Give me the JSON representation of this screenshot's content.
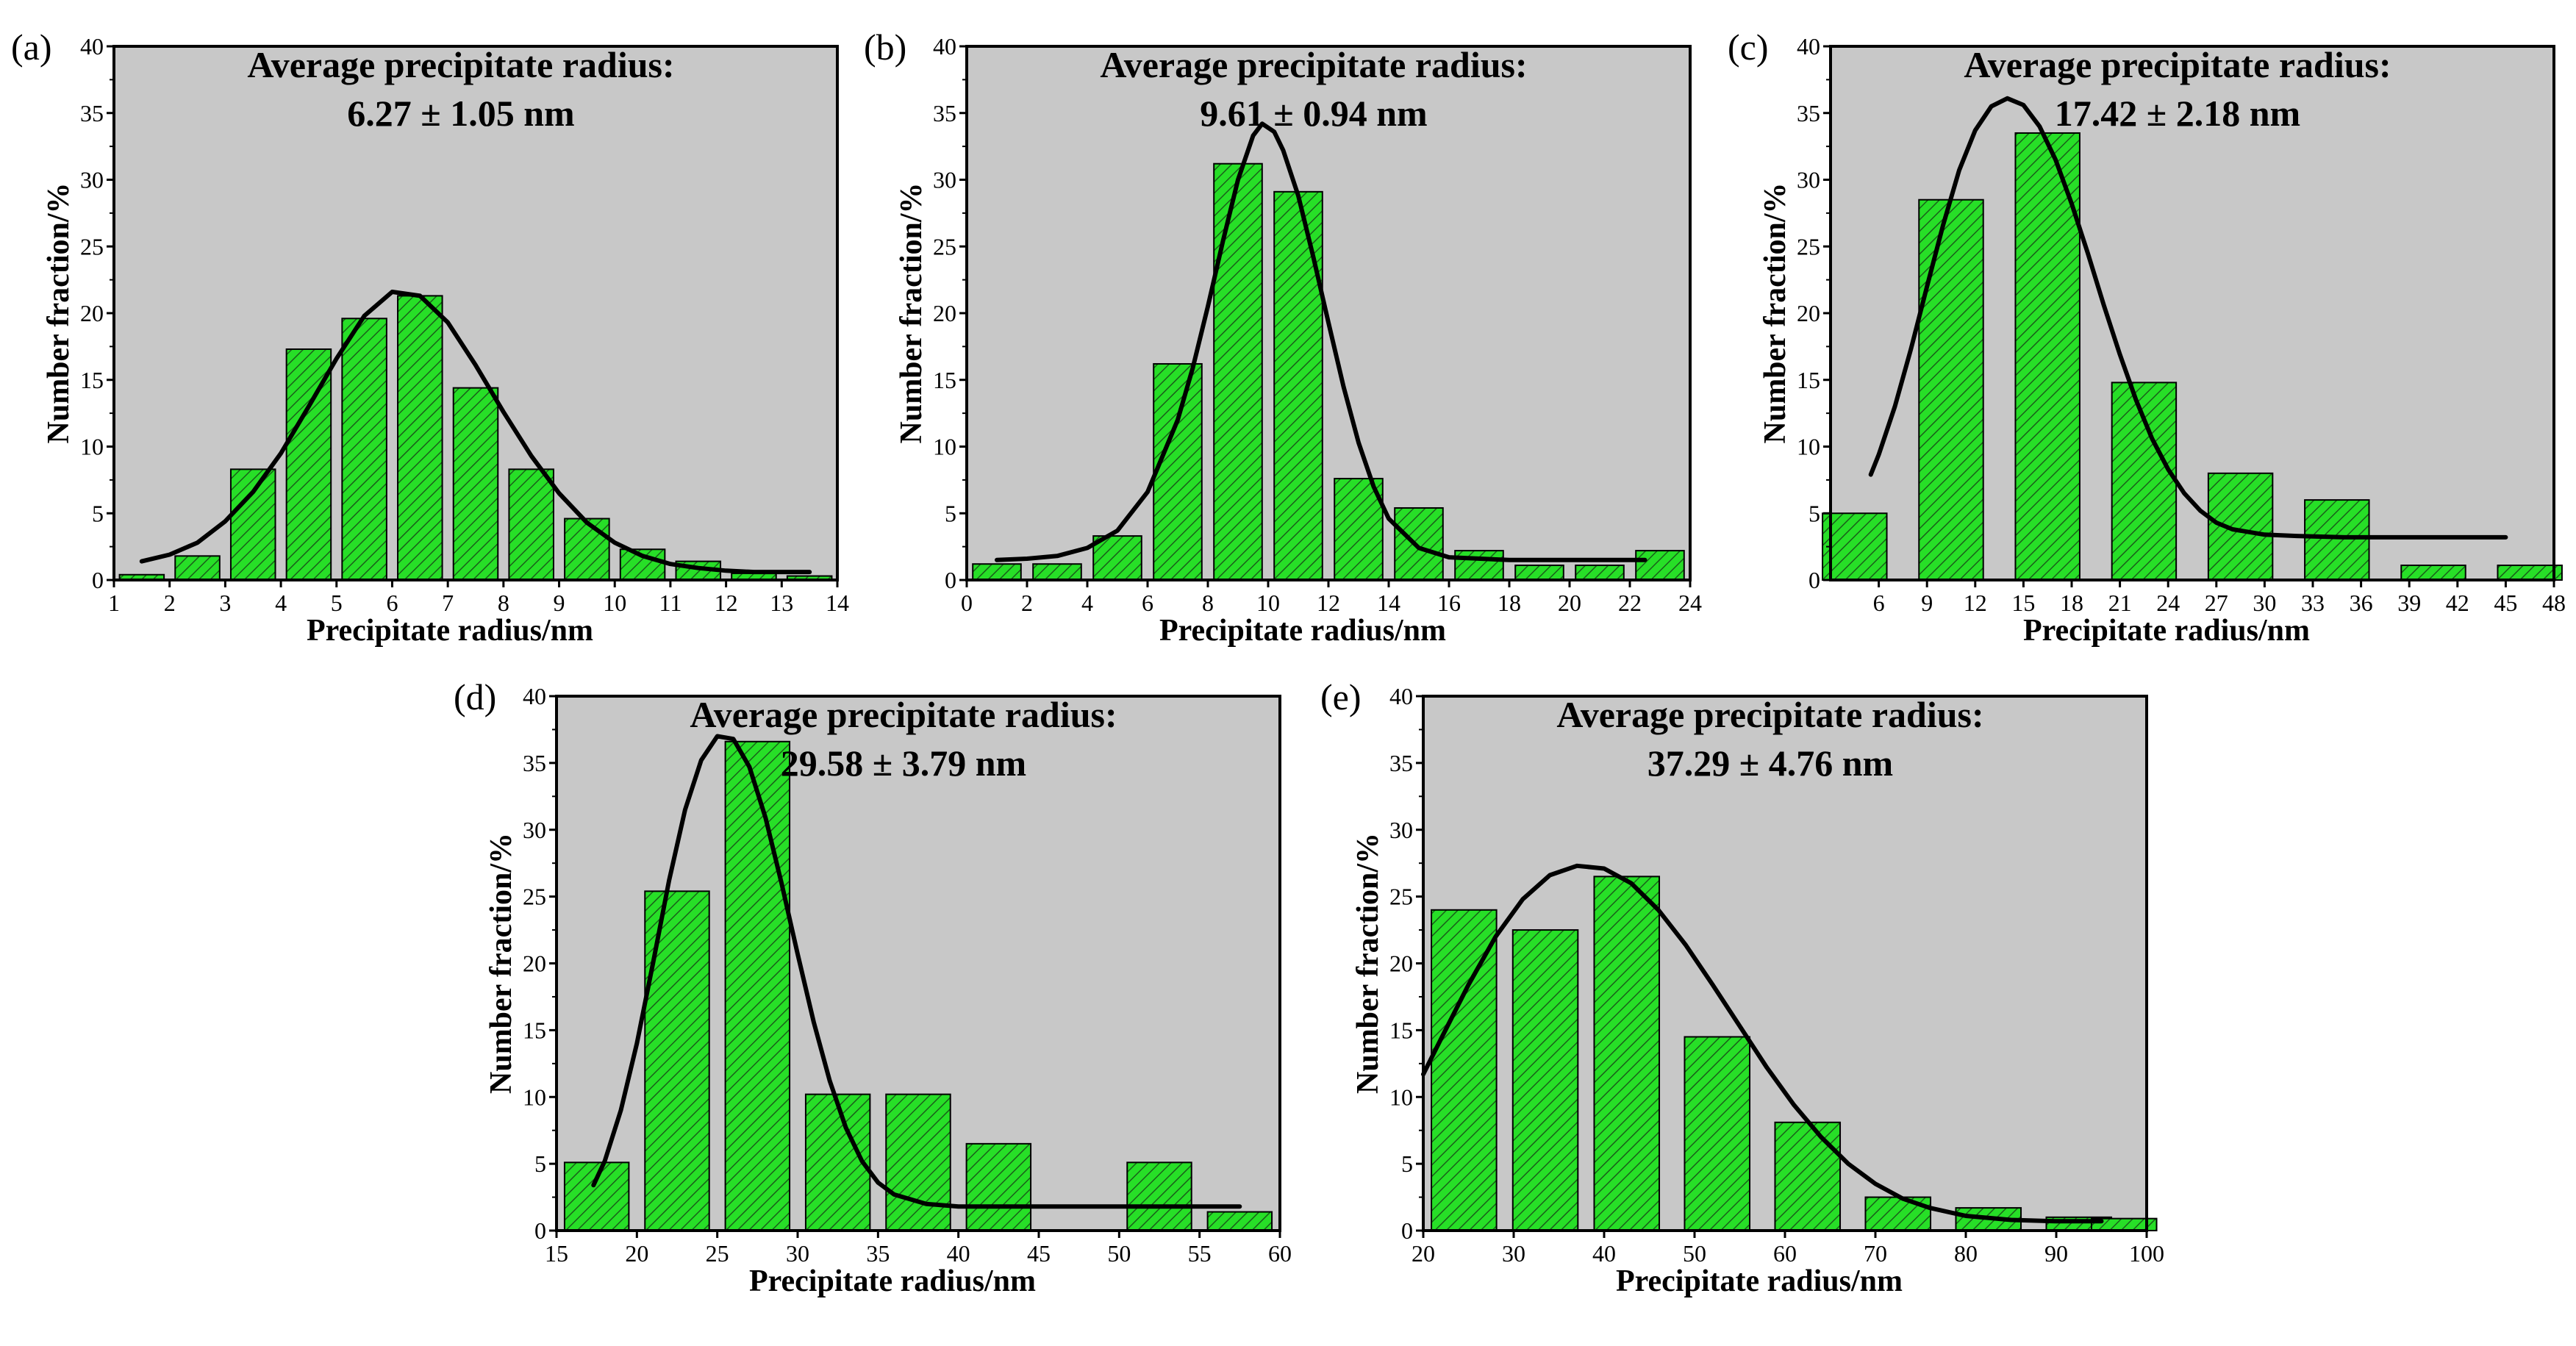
{
  "colors": {
    "plot_background": "#c8c8c8",
    "bar_fill": "#27df27",
    "bar_edge": "#000000",
    "curve": "#000000",
    "hatch": "#1a5f1a"
  },
  "chart_data": [
    {
      "panel": "(a)",
      "type": "bar",
      "annotation": [
        "Average precipitate radius:",
        "6.27 ± 1.05 nm"
      ],
      "xlabel": "Precipitate radius/nm",
      "ylabel": "Number fraction/%",
      "xlim": [
        1,
        14
      ],
      "ylim": [
        0,
        40
      ],
      "xticks": [
        1,
        2,
        3,
        4,
        5,
        6,
        7,
        8,
        9,
        10,
        11,
        12,
        13,
        14
      ],
      "yticks": [
        0,
        5,
        10,
        15,
        20,
        25,
        30,
        35,
        40
      ],
      "bars": [
        {
          "x": 1.5,
          "value": 0.4
        },
        {
          "x": 2.5,
          "value": 1.8
        },
        {
          "x": 3.5,
          "value": 8.3
        },
        {
          "x": 4.5,
          "value": 17.3
        },
        {
          "x": 5.5,
          "value": 19.6
        },
        {
          "x": 6.5,
          "value": 21.3
        },
        {
          "x": 7.5,
          "value": 14.4
        },
        {
          "x": 8.5,
          "value": 8.3
        },
        {
          "x": 9.5,
          "value": 4.6
        },
        {
          "x": 10.5,
          "value": 2.3
        },
        {
          "x": 11.5,
          "value": 1.4
        },
        {
          "x": 12.5,
          "value": 0.5
        },
        {
          "x": 13.5,
          "value": 0.3
        }
      ],
      "bar_width": 0.8,
      "fit_curve": [
        [
          1.5,
          1.4
        ],
        [
          2,
          1.9
        ],
        [
          2.5,
          2.8
        ],
        [
          3,
          4.4
        ],
        [
          3.5,
          6.6
        ],
        [
          4,
          9.5
        ],
        [
          4.5,
          13.0
        ],
        [
          5,
          16.6
        ],
        [
          5.5,
          19.8
        ],
        [
          6,
          21.6
        ],
        [
          6.5,
          21.3
        ],
        [
          7,
          19.3
        ],
        [
          7.5,
          16.1
        ],
        [
          8,
          12.6
        ],
        [
          8.5,
          9.3
        ],
        [
          9,
          6.5
        ],
        [
          9.5,
          4.3
        ],
        [
          10,
          2.8
        ],
        [
          10.5,
          1.8
        ],
        [
          11,
          1.2
        ],
        [
          11.5,
          0.9
        ],
        [
          12,
          0.7
        ],
        [
          12.5,
          0.6
        ],
        [
          13,
          0.6
        ],
        [
          13.5,
          0.6
        ]
      ]
    },
    {
      "panel": "(b)",
      "type": "bar",
      "annotation": [
        "Average precipitate radius:",
        "9.61 ± 0.94 nm"
      ],
      "xlabel": "Precipitate radius/nm",
      "ylabel": "Number fraction/%",
      "xlim": [
        0,
        24
      ],
      "ylim": [
        0,
        40
      ],
      "xticks": [
        0,
        2,
        4,
        6,
        8,
        10,
        12,
        14,
        16,
        18,
        20,
        22,
        24
      ],
      "yticks": [
        0,
        5,
        10,
        15,
        20,
        25,
        30,
        35,
        40
      ],
      "bars": [
        {
          "x": 1,
          "value": 1.2
        },
        {
          "x": 3,
          "value": 1.2
        },
        {
          "x": 5,
          "value": 3.3
        },
        {
          "x": 7,
          "value": 16.2
        },
        {
          "x": 9,
          "value": 31.2
        },
        {
          "x": 11,
          "value": 29.1
        },
        {
          "x": 13,
          "value": 7.6
        },
        {
          "x": 15,
          "value": 5.4
        },
        {
          "x": 17,
          "value": 2.2
        },
        {
          "x": 19,
          "value": 1.1
        },
        {
          "x": 21,
          "value": 1.1
        },
        {
          "x": 23,
          "value": 2.2
        }
      ],
      "bar_width": 1.6,
      "fit_curve": [
        [
          1,
          1.5
        ],
        [
          2,
          1.6
        ],
        [
          3,
          1.8
        ],
        [
          4,
          2.4
        ],
        [
          5,
          3.7
        ],
        [
          6,
          6.6
        ],
        [
          7,
          12.0
        ],
        [
          7.5,
          15.9
        ],
        [
          8,
          20.5
        ],
        [
          8.5,
          25.4
        ],
        [
          9,
          30.0
        ],
        [
          9.5,
          33.3
        ],
        [
          9.8,
          34.2
        ],
        [
          10.2,
          33.6
        ],
        [
          10.5,
          32.2
        ],
        [
          11,
          28.8
        ],
        [
          11.5,
          24.2
        ],
        [
          12,
          19.3
        ],
        [
          12.5,
          14.5
        ],
        [
          13,
          10.3
        ],
        [
          13.5,
          7.0
        ],
        [
          14,
          4.6
        ],
        [
          15,
          2.4
        ],
        [
          16,
          1.7
        ],
        [
          18,
          1.5
        ],
        [
          20,
          1.5
        ],
        [
          22.5,
          1.5
        ]
      ]
    },
    {
      "panel": "(c)",
      "type": "bar",
      "annotation": [
        "Average precipitate radius:",
        "17.42 ± 2.18 nm"
      ],
      "xlabel": "Precipitate radius/nm",
      "ylabel": "Number fraction/%",
      "xlim": [
        3,
        48
      ],
      "ylim": [
        0,
        40
      ],
      "xticks": [
        6,
        9,
        12,
        15,
        18,
        21,
        24,
        27,
        30,
        33,
        36,
        39,
        42,
        45,
        48
      ],
      "yticks": [
        0,
        5,
        10,
        15,
        20,
        25,
        30,
        35,
        40
      ],
      "bars": [
        {
          "x": 4.5,
          "value": 5.0
        },
        {
          "x": 10.5,
          "value": 28.5
        },
        {
          "x": 16.5,
          "value": 33.5
        },
        {
          "x": 22.5,
          "value": 14.8
        },
        {
          "x": 28.5,
          "value": 8.0
        },
        {
          "x": 34.5,
          "value": 6.0
        },
        {
          "x": 40.5,
          "value": 1.1
        },
        {
          "x": 46.5,
          "value": 1.1
        }
      ],
      "bar_width": 4.0,
      "fit_curve": [
        [
          5.5,
          7.9
        ],
        [
          6,
          9.4
        ],
        [
          7,
          13.0
        ],
        [
          8,
          17.3
        ],
        [
          9,
          22.0
        ],
        [
          10,
          26.6
        ],
        [
          11,
          30.7
        ],
        [
          12,
          33.7
        ],
        [
          13,
          35.5
        ],
        [
          14,
          36.1
        ],
        [
          15,
          35.6
        ],
        [
          16,
          34.0
        ],
        [
          17,
          31.5
        ],
        [
          18,
          28.2
        ],
        [
          19,
          24.5
        ],
        [
          20,
          20.6
        ],
        [
          21,
          16.9
        ],
        [
          22,
          13.5
        ],
        [
          23,
          10.6
        ],
        [
          24,
          8.3
        ],
        [
          25,
          6.5
        ],
        [
          26,
          5.2
        ],
        [
          27,
          4.3
        ],
        [
          28,
          3.8
        ],
        [
          30,
          3.4
        ],
        [
          32,
          3.3
        ],
        [
          35,
          3.2
        ],
        [
          40,
          3.2
        ],
        [
          45,
          3.2
        ]
      ]
    },
    {
      "panel": "(d)",
      "type": "bar",
      "annotation": [
        "Average precipitate radius:",
        "29.58 ± 3.79 nm"
      ],
      "xlabel": "Precipitate radius/nm",
      "ylabel": "Number fraction/%",
      "xlim": [
        15,
        60
      ],
      "ylim": [
        0,
        40
      ],
      "xticks": [
        15,
        20,
        25,
        30,
        35,
        40,
        45,
        50,
        55,
        60
      ],
      "yticks": [
        0,
        5,
        10,
        15,
        20,
        25,
        30,
        35,
        40
      ],
      "bars": [
        {
          "x": 17.5,
          "value": 5.1
        },
        {
          "x": 22.5,
          "value": 25.4
        },
        {
          "x": 27.5,
          "value": 36.6
        },
        {
          "x": 32.5,
          "value": 10.2
        },
        {
          "x": 37.5,
          "value": 10.2
        },
        {
          "x": 42.5,
          "value": 6.5
        },
        {
          "x": 47.5,
          "value": 0
        },
        {
          "x": 52.5,
          "value": 5.1
        },
        {
          "x": 57.5,
          "value": 1.4
        }
      ],
      "bar_width": 4.0,
      "fit_curve": [
        [
          17.3,
          3.4
        ],
        [
          18,
          5.2
        ],
        [
          19,
          9.0
        ],
        [
          20,
          14.0
        ],
        [
          21,
          20.0
        ],
        [
          22,
          26.2
        ],
        [
          23,
          31.5
        ],
        [
          24,
          35.2
        ],
        [
          25,
          37.0
        ],
        [
          26,
          36.8
        ],
        [
          27,
          34.7
        ],
        [
          28,
          30.9
        ],
        [
          29,
          26.0
        ],
        [
          30,
          20.7
        ],
        [
          31,
          15.6
        ],
        [
          32,
          11.2
        ],
        [
          33,
          7.7
        ],
        [
          34,
          5.2
        ],
        [
          35,
          3.6
        ],
        [
          36,
          2.7
        ],
        [
          38,
          2.0
        ],
        [
          40,
          1.8
        ],
        [
          45,
          1.8
        ],
        [
          50,
          1.8
        ],
        [
          57.5,
          1.8
        ]
      ]
    },
    {
      "panel": "(e)",
      "type": "bar",
      "annotation": [
        "Average precipitate radius:",
        "37.29 ± 4.76 nm"
      ],
      "xlabel": "Precipitate radius/nm",
      "ylabel": "Number fraction/%",
      "xlim": [
        20,
        100
      ],
      "ylim": [
        0,
        40
      ],
      "xticks": [
        20,
        30,
        40,
        50,
        60,
        70,
        80,
        90,
        100
      ],
      "yticks": [
        0,
        5,
        10,
        15,
        20,
        25,
        30,
        35,
        40
      ],
      "bars": [
        {
          "x": 24.5,
          "value": 24.0
        },
        {
          "x": 33.5,
          "value": 22.5
        },
        {
          "x": 42.5,
          "value": 26.5
        },
        {
          "x": 52.5,
          "value": 14.5
        },
        {
          "x": 62.5,
          "value": 8.1
        },
        {
          "x": 72.5,
          "value": 2.5
        },
        {
          "x": 82.5,
          "value": 1.7
        },
        {
          "x": 92.5,
          "value": 1.0
        },
        {
          "x": 97.5,
          "value": 0.9
        }
      ],
      "bar_width": 7.2,
      "fit_curve": [
        [
          20,
          11.7
        ],
        [
          22,
          14.4
        ],
        [
          25,
          18.4
        ],
        [
          28,
          22.0
        ],
        [
          31,
          24.8
        ],
        [
          34,
          26.6
        ],
        [
          37,
          27.3
        ],
        [
          40,
          27.1
        ],
        [
          43,
          26.0
        ],
        [
          46,
          24.0
        ],
        [
          49,
          21.4
        ],
        [
          52,
          18.4
        ],
        [
          55,
          15.3
        ],
        [
          58,
          12.2
        ],
        [
          61,
          9.4
        ],
        [
          64,
          7.0
        ],
        [
          67,
          5.0
        ],
        [
          70,
          3.5
        ],
        [
          73,
          2.4
        ],
        [
          76,
          1.7
        ],
        [
          80,
          1.1
        ],
        [
          85,
          0.8
        ],
        [
          90,
          0.7
        ],
        [
          95,
          0.7
        ]
      ]
    }
  ]
}
